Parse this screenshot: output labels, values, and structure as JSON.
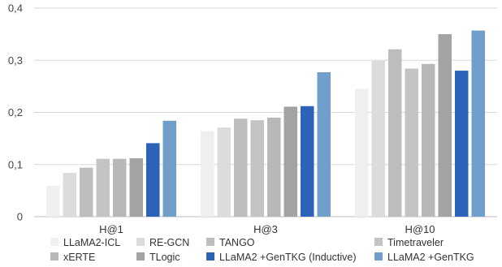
{
  "chart_data": {
    "type": "bar",
    "title": "",
    "xlabel": "",
    "ylabel": "",
    "ylim": [
      0,
      0.4
    ],
    "y_ticks": [
      {
        "value": 0,
        "label": "0"
      },
      {
        "value": 0.1,
        "label": "0,1"
      },
      {
        "value": 0.2,
        "label": "0,2"
      },
      {
        "value": 0.3,
        "label": "0,3"
      },
      {
        "value": 0.4,
        "label": "0,4"
      }
    ],
    "grid": true,
    "legend_position": "bottom",
    "categories": [
      "H@1",
      "H@3",
      "H@10"
    ],
    "series": [
      {
        "name": "LLaMA2-ICL",
        "color": "#efefef",
        "values": [
          0.059,
          0.164,
          0.245
        ]
      },
      {
        "name": "RE-GCN",
        "color": "#dcdcdc",
        "values": [
          0.084,
          0.171,
          0.299
        ]
      },
      {
        "name": "TANGO",
        "color": "#bdbdbd",
        "values": [
          0.094,
          0.188,
          0.321
        ]
      },
      {
        "name": "Timetraveler",
        "color": "#c4c4c4",
        "values": [
          0.111,
          0.185,
          0.284
        ]
      },
      {
        "name": "xERTE",
        "color": "#b8b8b8",
        "values": [
          0.111,
          0.19,
          0.293
        ]
      },
      {
        "name": "TLogic",
        "color": "#a3a3a3",
        "values": [
          0.112,
          0.211,
          0.35
        ]
      },
      {
        "name": "LLaMA2 +GenTKG (Inductive)",
        "color": "#2c63b8",
        "values": [
          0.141,
          0.212,
          0.28
        ]
      },
      {
        "name": "LLaMA2 +GenTKG",
        "color": "#6f9fca",
        "values": [
          0.184,
          0.277,
          0.357
        ]
      }
    ]
  }
}
